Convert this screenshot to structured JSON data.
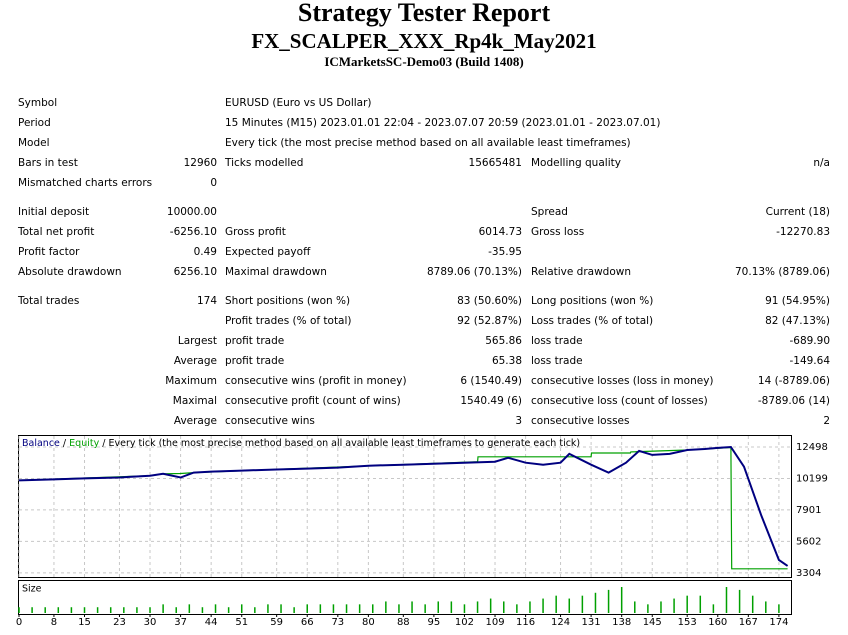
{
  "header": {
    "title": "Strategy Tester Report",
    "subtitle": "FX_SCALPER_XXX_Rp4k_May2021",
    "server": "ICMarketsSC-Demo03 (Build 1408)"
  },
  "table": {
    "rows": [
      [
        "Symbol",
        null,
        "EURUSD (Euro vs US Dollar)",
        null,
        null,
        null
      ],
      [
        "Period",
        null,
        "15 Minutes (M15) 2023.01.01 22:04 - 2023.07.07 20:59 (2023.01.01 - 2023.07.01)",
        null,
        null,
        null
      ],
      [
        "Model",
        null,
        "Every tick (the most precise method based on all available least timeframes)",
        null,
        null,
        null
      ],
      [
        "Bars in test",
        "12960",
        "Ticks modelled",
        "15665481",
        "Modelling quality",
        "n/a"
      ],
      [
        "Mismatched charts errors",
        "0",
        null,
        null,
        null,
        null
      ],
      [
        "Initial deposit",
        "10000.00",
        null,
        null,
        "Spread",
        "Current (18)"
      ],
      [
        "Total net profit",
        "-6256.10",
        "Gross profit",
        "6014.73",
        "Gross loss",
        "-12270.83"
      ],
      [
        "Profit factor",
        "0.49",
        "Expected payoff",
        "-35.95",
        null,
        null
      ],
      [
        "Absolute drawdown",
        "6256.10",
        "Maximal drawdown",
        "8789.06 (70.13%)",
        "Relative drawdown",
        "70.13% (8789.06)"
      ],
      [
        "Total trades",
        "174",
        "Short positions (won %)",
        "83 (50.60%)",
        "Long positions (won %)",
        "91 (54.95%)"
      ],
      [
        null,
        null,
        "Profit trades (% of total)",
        "92 (52.87%)",
        "Loss trades (% of total)",
        "82 (47.13%)"
      ],
      [
        null,
        "Largest",
        "profit trade",
        "565.86",
        "loss trade",
        "-689.90"
      ],
      [
        null,
        "Average",
        "profit trade",
        "65.38",
        "loss trade",
        "-149.64"
      ],
      [
        null,
        "Maximum",
        "consecutive wins (profit in money)",
        "6 (1540.49)",
        "consecutive losses (loss in money)",
        "14 (-8789.06)"
      ],
      [
        null,
        "Maximal",
        "consecutive profit (count of wins)",
        "1540.49 (6)",
        "consecutive loss (count of losses)",
        "-8789.06 (14)"
      ],
      [
        null,
        "Average",
        "consecutive wins",
        "3",
        "consecutive losses",
        "2"
      ]
    ]
  },
  "chart_data": {
    "type": "line",
    "legend_separator": "/",
    "subtitle": "Every tick (the most precise method based on all available least timeframes to generate each tick)",
    "xlim": [
      0,
      177
    ],
    "ylim": [
      3000,
      13300
    ],
    "xticks": [
      0,
      8,
      15,
      23,
      30,
      37,
      44,
      51,
      59,
      66,
      73,
      80,
      88,
      95,
      102,
      109,
      116,
      124,
      131,
      138,
      145,
      153,
      160,
      167,
      174
    ],
    "yticks": [
      12498,
      10199,
      7901,
      5602,
      3304
    ],
    "grid": true,
    "series": [
      {
        "name": "Balance",
        "color": "#000080",
        "x": [
          0,
          8,
          15,
          23,
          30,
          33,
          37,
          40,
          44,
          51,
          59,
          66,
          73,
          80,
          88,
          95,
          102,
          109,
          112,
          116,
          120,
          124,
          126,
          131,
          135,
          139,
          142,
          145,
          149,
          153,
          157,
          160,
          163,
          166,
          170,
          174,
          176
        ],
        "values": [
          10055,
          10130,
          10200,
          10270,
          10400,
          10540,
          10270,
          10630,
          10700,
          10770,
          10850,
          10920,
          10990,
          11130,
          11200,
          11280,
          11350,
          11420,
          11710,
          11350,
          11200,
          11350,
          11990,
          11200,
          10630,
          11350,
          12210,
          11920,
          11990,
          12280,
          12350,
          12430,
          12498,
          11060,
          7470,
          4240,
          3810
        ]
      },
      {
        "name": "Equity",
        "color": "#00a000",
        "x": [
          0,
          30,
          33,
          37,
          40,
          105,
          105.1,
          131,
          131.1,
          140,
          140.1,
          153,
          163,
          163.2,
          176
        ],
        "values": [
          10055,
          10400,
          10540,
          10560,
          10630,
          11420,
          11780,
          11780,
          12060,
          12060,
          12140,
          12280,
          12460,
          3600,
          3600
        ]
      }
    ],
    "size": {
      "label": "Size",
      "x": [
        0,
        3,
        6,
        9,
        12,
        15,
        18,
        21,
        24,
        27,
        30,
        33,
        36,
        39,
        42,
        45,
        48,
        51,
        54,
        57,
        60,
        63,
        66,
        69,
        72,
        75,
        78,
        81,
        84,
        87,
        90,
        93,
        96,
        99,
        102,
        105,
        108,
        111,
        114,
        117,
        120,
        123,
        126,
        129,
        132,
        135,
        138,
        141,
        144,
        147,
        150,
        153,
        156,
        159,
        162,
        165,
        168,
        171,
        174
      ],
      "values": [
        2,
        2,
        2,
        2,
        2,
        2,
        2,
        2,
        2,
        2,
        2,
        3,
        2,
        3,
        2,
        3,
        2,
        3,
        2,
        3,
        3,
        2,
        3,
        3,
        3,
        3,
        3,
        3,
        4,
        3,
        4,
        3,
        4,
        4,
        3,
        4,
        5,
        4,
        3,
        4,
        5,
        6,
        5,
        6,
        7,
        8,
        9,
        4,
        3,
        4,
        5,
        6,
        6,
        3,
        9,
        8,
        6,
        4,
        3
      ],
      "color": "#00a000"
    }
  }
}
